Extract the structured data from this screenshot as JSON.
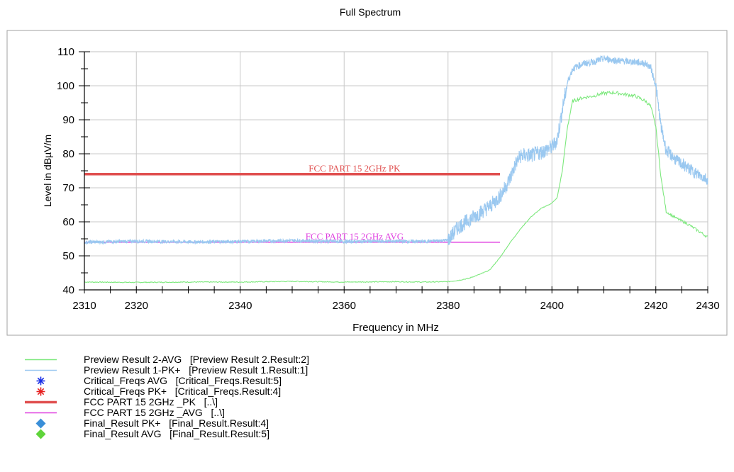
{
  "chart_data": {
    "type": "line",
    "title": "Full Spectrum",
    "xlabel": "Frequency in MHz",
    "ylabel": "Level in dBµV/m",
    "xlim": [
      2310,
      2430
    ],
    "ylim": [
      40,
      110
    ],
    "x_ticks": [
      2310,
      2320,
      2340,
      2360,
      2380,
      2400,
      2420,
      2430
    ],
    "y_ticks": [
      40,
      50,
      60,
      70,
      80,
      90,
      100,
      110
    ],
    "grid": true,
    "legend_position": "bottom",
    "limit_lines": [
      {
        "label": "FCC PART 15 2GHz  PK",
        "y": 74,
        "x_start": 2310,
        "x_end": 2390,
        "color": "#e05050"
      },
      {
        "label": "FCC PART 15 2GHz  AVG",
        "y": 54,
        "x_start": 2310,
        "x_end": 2390,
        "color": "#e040e0"
      }
    ],
    "series": [
      {
        "name": "Preview Result 2-AVG",
        "color": "#7de87d",
        "x": [
          2310,
          2320,
          2330,
          2340,
          2350,
          2360,
          2370,
          2375,
          2380,
          2382,
          2384,
          2386,
          2388,
          2390,
          2392,
          2394,
          2396,
          2398,
          2400,
          2401,
          2402,
          2403,
          2404,
          2406,
          2408,
          2410,
          2412,
          2414,
          2416,
          2418,
          2419,
          2420,
          2421,
          2422,
          2424,
          2426,
          2428,
          2430
        ],
        "y": [
          42.3,
          42.2,
          42.3,
          42.3,
          42.5,
          42.3,
          42.4,
          42.3,
          42.4,
          42.8,
          43.4,
          44.5,
          45.8,
          49.5,
          54,
          58,
          61.5,
          64,
          65.5,
          67,
          75,
          88,
          95.5,
          96.5,
          97,
          97.8,
          98,
          97.5,
          97,
          95.5,
          94,
          88,
          73,
          63,
          61,
          59.5,
          57.5,
          55.5
        ]
      },
      {
        "name": "Preview Result 1-PK+",
        "color": "#9ac8f0",
        "x": [
          2310,
          2320,
          2330,
          2340,
          2350,
          2360,
          2370,
          2375,
          2380,
          2382,
          2384,
          2386,
          2388,
          2390,
          2391,
          2392,
          2393,
          2394,
          2396,
          2398,
          2400,
          2401,
          2402,
          2403,
          2404,
          2406,
          2408,
          2410,
          2412,
          2414,
          2416,
          2418,
          2419,
          2420,
          2421,
          2422,
          2424,
          2426,
          2428,
          2430
        ],
        "y": [
          54.0,
          54.3,
          54.1,
          54.2,
          54.5,
          54.2,
          54.3,
          54.2,
          54.6,
          58.5,
          60.5,
          62.5,
          64.5,
          67.5,
          70,
          73,
          77,
          79.5,
          79.5,
          80.5,
          82,
          84,
          93,
          101,
          105,
          106.5,
          107,
          108,
          107.5,
          107.2,
          107,
          106.5,
          105.5,
          100,
          88,
          81,
          78,
          76,
          74,
          72.5
        ]
      }
    ],
    "legend": [
      {
        "symbol": "line",
        "color": "#7de87d",
        "label": "Preview Result 2-AVG   [Preview Result 2.Result:2]"
      },
      {
        "symbol": "line",
        "color": "#9ac8f0",
        "label": "Preview Result 1-PK+   [Preview Result 1.Result:1]"
      },
      {
        "symbol": "star",
        "color": "#1a2ee6",
        "label": "Critical_Freqs AVG   [Critical_Freqs.Result:5]"
      },
      {
        "symbol": "star",
        "color": "#e62020",
        "label": "Critical_Freqs PK+   [Critical_Freqs.Result:4]"
      },
      {
        "symbol": "thick-line",
        "color": "#e05050",
        "label": "FCC PART 15 2GHz _PK   [..\\]"
      },
      {
        "symbol": "line",
        "color": "#e040e0",
        "label": "FCC PART 15 2GHz _AVG   [..\\]"
      },
      {
        "symbol": "diamond",
        "color": "#3a8fd8",
        "label": "Final_Result PK+   [Final_Result.Result:4]"
      },
      {
        "symbol": "diamond",
        "color": "#5fd43a",
        "label": "Final_Result AVG   [Final_Result.Result:5]"
      }
    ]
  }
}
